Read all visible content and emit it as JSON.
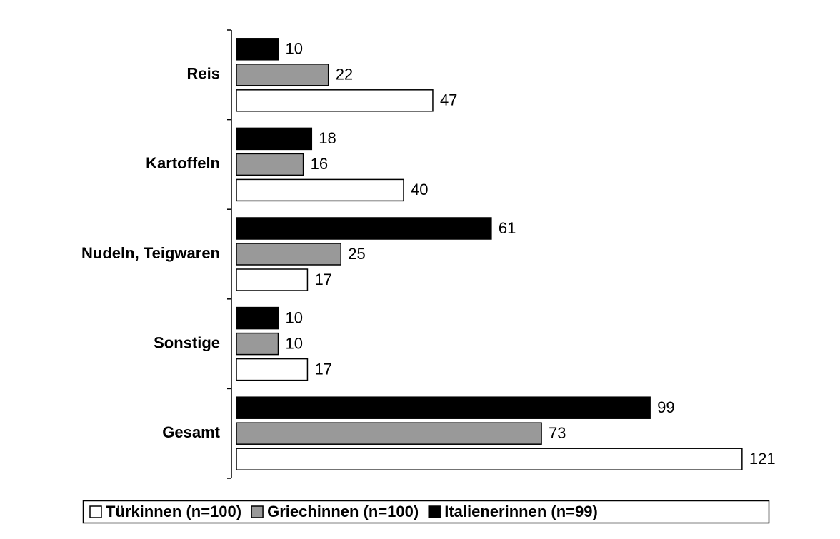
{
  "chart_data": {
    "type": "bar",
    "orientation": "horizontal",
    "categories": [
      "Reis",
      "Kartoffeln",
      "Nudeln, Teigwaren",
      "Sonstige",
      "Gesamt"
    ],
    "series": [
      {
        "name": "Türkinnen (n=100)",
        "color": "#ffffff",
        "values": [
          47,
          40,
          17,
          17,
          121
        ]
      },
      {
        "name": "Griechinnen (n=100)",
        "color": "#999999",
        "values": [
          22,
          16,
          25,
          10,
          73
        ]
      },
      {
        "name": "Italienerinnen (n=99)",
        "color": "#000000",
        "values": [
          10,
          18,
          61,
          10,
          99
        ]
      }
    ],
    "xlim": [
      0,
      140
    ],
    "legend": "bottom"
  }
}
